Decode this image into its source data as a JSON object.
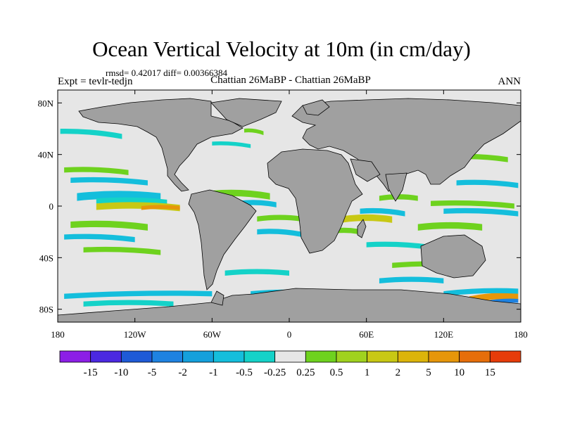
{
  "chart_data": {
    "type": "heatmap",
    "title": "Ocean Vertical Velocity at 10m (in cm/day)",
    "stats_label": "rmsd= 0.42017 diff= 0.00366384",
    "experiment_label": "Expt = tevlr-tedjn",
    "comparison_label": "Chattian  26MaBP - Chattian  26MaBP",
    "season_label": "ANN",
    "x_ticks": [
      "180",
      "120W",
      "60W",
      "0",
      "60E",
      "120E",
      "180"
    ],
    "x_values": [
      -180,
      -120,
      -60,
      0,
      60,
      120,
      180
    ],
    "y_ticks": [
      "80N",
      "40N",
      "0",
      "40S",
      "80S"
    ],
    "y_values": [
      80,
      40,
      0,
      -40,
      -80
    ],
    "xlim": [
      -180,
      180
    ],
    "ylim": [
      -90,
      90
    ],
    "colorbar": {
      "levels": [
        "-15",
        "-10",
        "-5",
        "-2",
        "-1",
        "-0.5",
        "-0.25",
        "0.25",
        "0.5",
        "1",
        "2",
        "5",
        "10",
        "15"
      ],
      "colors": [
        "#8c1ee6",
        "#4b28e1",
        "#1e5ad7",
        "#1e82e1",
        "#14a0dc",
        "#14bedc",
        "#14d2c8",
        "#e6e6e6",
        "#6ed21e",
        "#a0d21e",
        "#c8c814",
        "#dcb40a",
        "#e6960a",
        "#e66e0a",
        "#e63c0a"
      ]
    },
    "colors": {
      "land": "#a0a0a0",
      "ocean_neutral": "#e6e6e6"
    }
  }
}
